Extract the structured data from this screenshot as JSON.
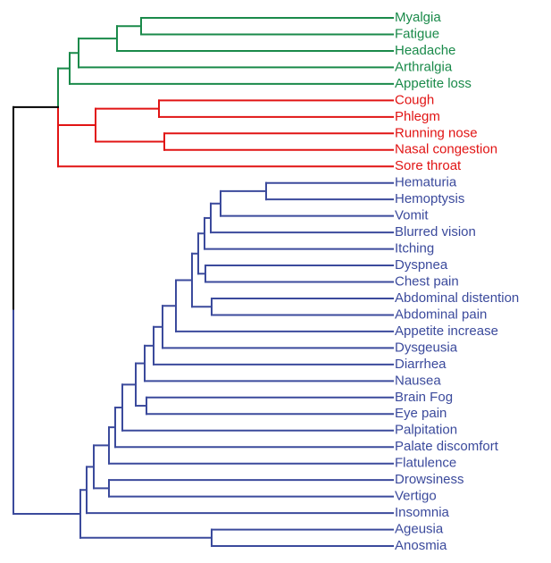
{
  "colors": {
    "green": "#1a8a4a",
    "red": "#e11414",
    "blue": "#3b4a9c",
    "root": "#000000"
  },
  "leaves": [
    {
      "label": "Myalgia",
      "group": "green"
    },
    {
      "label": "Fatigue",
      "group": "green"
    },
    {
      "label": "Headache",
      "group": "green"
    },
    {
      "label": "Arthralgia",
      "group": "green"
    },
    {
      "label": "Appetite loss",
      "group": "green"
    },
    {
      "label": "Cough",
      "group": "red"
    },
    {
      "label": "Phlegm",
      "group": "red"
    },
    {
      "label": "Running nose",
      "group": "red"
    },
    {
      "label": "Nasal congestion",
      "group": "red"
    },
    {
      "label": "Sore throat",
      "group": "red"
    },
    {
      "label": "Hematuria",
      "group": "blue"
    },
    {
      "label": "Hemoptysis",
      "group": "blue"
    },
    {
      "label": "Vomit",
      "group": "blue"
    },
    {
      "label": "Blurred vision",
      "group": "blue"
    },
    {
      "label": "Itching",
      "group": "blue"
    },
    {
      "label": "Dyspnea",
      "group": "blue"
    },
    {
      "label": "Chest pain",
      "group": "blue"
    },
    {
      "label": "Abdominal distention",
      "group": "blue"
    },
    {
      "label": "Abdominal pain",
      "group": "blue"
    },
    {
      "label": "Appetite increase",
      "group": "blue"
    },
    {
      "label": "Dysgeusia",
      "group": "blue"
    },
    {
      "label": "Diarrhea",
      "group": "blue"
    },
    {
      "label": "Nausea",
      "group": "blue"
    },
    {
      "label": "Brain Fog",
      "group": "blue"
    },
    {
      "label": "Eye pain",
      "group": "blue"
    },
    {
      "label": "Palpitation",
      "group": "blue"
    },
    {
      "label": "Palate discomfort",
      "group": "blue"
    },
    {
      "label": "Flatulence",
      "group": "blue"
    },
    {
      "label": "Drowsiness",
      "group": "blue"
    },
    {
      "label": "Vertigo",
      "group": "blue"
    },
    {
      "label": "Insomnia",
      "group": "blue"
    },
    {
      "label": "Ageusia",
      "group": "blue"
    },
    {
      "label": "Anosmia",
      "group": "blue"
    }
  ]
}
